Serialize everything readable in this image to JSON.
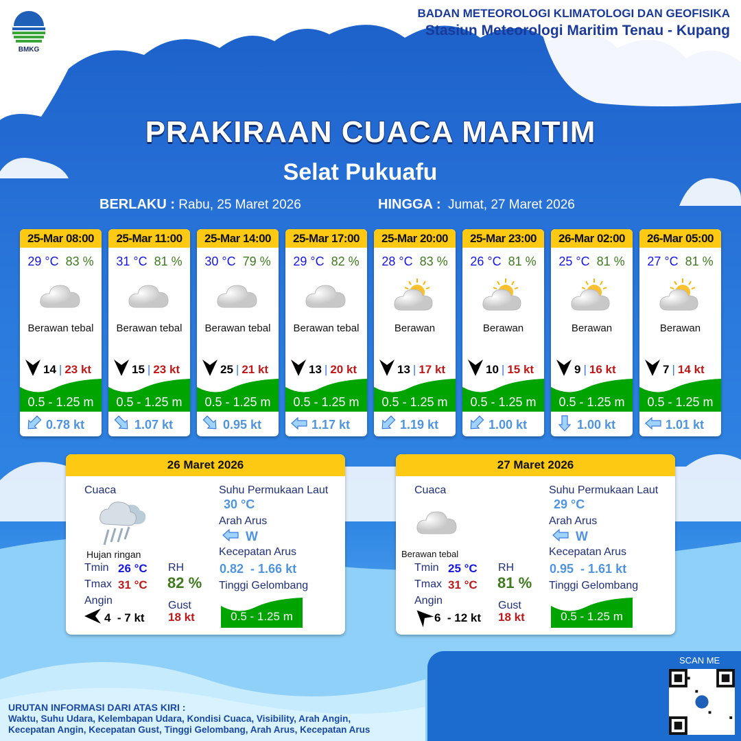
{
  "header": {
    "org": "BADAN METEOROLOGI KLIMATOLOGI DAN GEOFISIKA",
    "station": "Stasiun Meteorologi Maritim Tenau - Kupang",
    "logo_text": "BMKG"
  },
  "title": "PRAKIRAAN CUACA MARITIM",
  "area": "Selat Pukuafu",
  "validity": {
    "from_label": "BERLAKU :",
    "from": "Rabu, 25 Maret 2026",
    "to_label": "HINGGA :",
    "to": "Jumat, 27 Maret 2026"
  },
  "colors": {
    "header_yellow": "#fdc913",
    "wave_green": "#00a400",
    "temp_blue": "#1515e8",
    "rh_green": "#3f7a1e",
    "gust_red": "#c01818",
    "current_blue": "#4f94e0"
  },
  "forecasts": [
    {
      "time": "25-Mar 08:00",
      "temp": "29 °C",
      "rh": "83 %",
      "icon": "cloud-icon",
      "weather": "Berawan tebal",
      "wind_arrow": "down",
      "wind": "14",
      "gust": "23 kt",
      "wave": "0.5 - 1.25 m",
      "current_dir": "SW",
      "current": "0.78 kt"
    },
    {
      "time": "25-Mar 11:00",
      "temp": "31 °C",
      "rh": "81 %",
      "icon": "cloud-icon",
      "weather": "Berawan tebal",
      "wind_arrow": "down",
      "wind": "15",
      "gust": "23 kt",
      "wave": "0.5 - 1.25 m",
      "current_dir": "SE",
      "current": "1.07 kt"
    },
    {
      "time": "25-Mar 14:00",
      "temp": "30 °C",
      "rh": "79 %",
      "icon": "cloud-icon",
      "weather": "Berawan tebal",
      "wind_arrow": "down",
      "wind": "25",
      "gust": "21 kt",
      "wave": "0.5 - 1.25 m",
      "current_dir": "SE",
      "current": "0.95 kt"
    },
    {
      "time": "25-Mar 17:00",
      "temp": "29 °C",
      "rh": "82 %",
      "icon": "cloud-icon",
      "weather": "Berawan tebal",
      "wind_arrow": "down",
      "wind": "13",
      "gust": "20 kt",
      "wave": "0.5 - 1.25 m",
      "current_dir": "W",
      "current": "1.17 kt"
    },
    {
      "time": "25-Mar 20:00",
      "temp": "28 °C",
      "rh": "83 %",
      "icon": "sun-cloud-icon",
      "weather": "Berawan",
      "wind_arrow": "down",
      "wind": "13",
      "gust": "17 kt",
      "wave": "0.5 - 1.25 m",
      "current_dir": "SW",
      "current": "1.19 kt"
    },
    {
      "time": "25-Mar 23:00",
      "temp": "26 °C",
      "rh": "81 %",
      "icon": "sun-cloud-icon",
      "weather": "Berawan",
      "wind_arrow": "down",
      "wind": "10",
      "gust": "15 kt",
      "wave": "0.5 - 1.25 m",
      "current_dir": "SW",
      "current": "1.00 kt"
    },
    {
      "time": "26-Mar 02:00",
      "temp": "25 °C",
      "rh": "81 %",
      "icon": "sun-cloud-icon",
      "weather": "Berawan",
      "wind_arrow": "down",
      "wind": "9",
      "gust": "16 kt",
      "wave": "0.5 - 1.25 m",
      "current_dir": "S",
      "current": "1.00 kt"
    },
    {
      "time": "26-Mar 05:00",
      "temp": "27 °C",
      "rh": "81 %",
      "icon": "sun-cloud-icon",
      "weather": "Berawan",
      "wind_arrow": "down",
      "wind": "7",
      "gust": "14 kt",
      "wave": "0.5 - 1.25 m",
      "current_dir": "W",
      "current": "1.01 kt"
    }
  ],
  "labels": {
    "weather": "Cuaca",
    "sst": "Suhu Permukaan Laut",
    "current_dir": "Arah Arus",
    "current_speed": "Kecepatan Arus",
    "wave": "Tinggi Gelombang",
    "tmin": "Tmin",
    "tmax": "Tmax",
    "rh": "RH",
    "wind": "Angin",
    "gust": "Gust"
  },
  "daily": [
    {
      "date": "26 Maret 2026",
      "icon": "rain-cloud-icon",
      "weather": "Hujan ringan",
      "tmin": "26 °C",
      "tmax": "31 °C",
      "rh": "82 %",
      "wind_arrow": "left",
      "wind": "4  - 7 kt",
      "gust": "18 kt",
      "sst": "30 °C",
      "current_dir": "W",
      "current": "0.82  - 1.66 kt",
      "wave": "0.5 - 1.25 m"
    },
    {
      "date": "27 Maret 2026",
      "icon": "cloud-icon",
      "weather": "Berawan tebal",
      "tmin": "25 °C",
      "tmax": "31 °C",
      "rh": "81 %",
      "wind_arrow": "up-left",
      "wind": "6  - 12 kt",
      "gust": "18 kt",
      "sst": "29 °C",
      "current_dir": "W",
      "current": "0.95  - 1.61 kt",
      "wave": "0.5 - 1.25 m"
    }
  ],
  "footer": {
    "heading": "URUTAN INFORMASI DARI ATAS KIRI :",
    "line1": "Waktu, Suhu Udara, Kelembapan Udara, Kondisi Cuaca, Visibility, Arah Angin,",
    "line2": "Kecepatan Angin, Kecepatan Gust, Tinggi Gelombang, Arah Arus, Kecepatan Arus",
    "scan": "SCAN ME"
  }
}
